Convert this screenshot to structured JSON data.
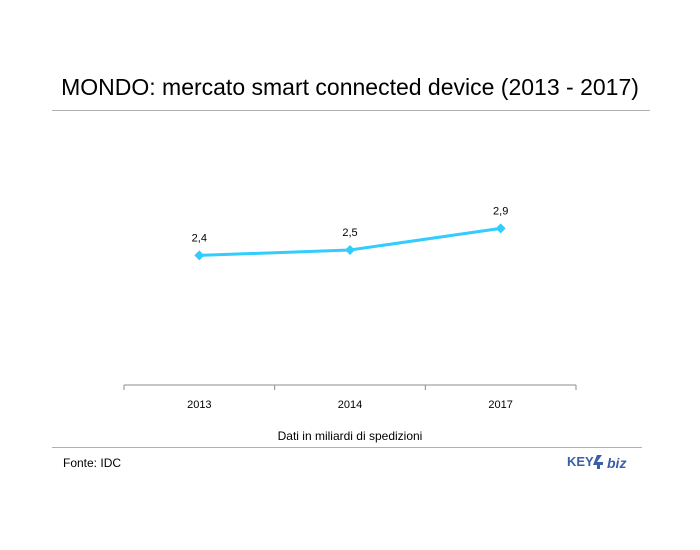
{
  "title": "MONDO: mercato smart connected device (2013 - 2017)",
  "axis_caption": "Dati in miliardi di spedizioni",
  "source": "Fonte: IDC",
  "logo": {
    "text_key": "KEY",
    "text_biz": "biz",
    "color": "#3a5fa8"
  },
  "chart_data": {
    "type": "line",
    "title": "MONDO: mercato smart connected device (2013 - 2017)",
    "xlabel": "Dati in miliardi di spedizioni",
    "ylabel": "",
    "categories": [
      "2013",
      "2014",
      "2017"
    ],
    "series": [
      {
        "values": [
          2.4,
          2.5,
          2.9
        ],
        "labels": [
          "2,4",
          "2,5",
          "2,9"
        ],
        "color": "#33ccff"
      }
    ],
    "ylim": [
      0,
      5
    ],
    "grid": false,
    "legend": "none",
    "marker": "diamond"
  }
}
